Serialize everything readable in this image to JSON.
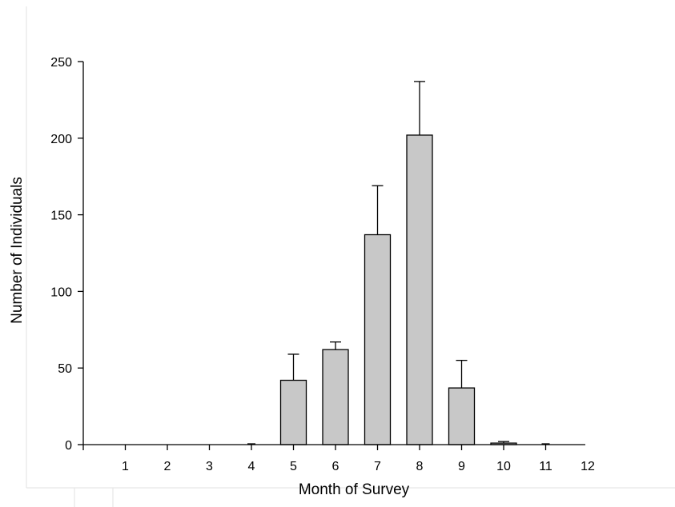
{
  "chart_data": {
    "type": "bar",
    "title": "",
    "xlabel": "Month of Survey",
    "ylabel": "Number of Individuals",
    "categories": [
      "1",
      "2",
      "3",
      "4",
      "5",
      "6",
      "7",
      "8",
      "9",
      "10",
      "11",
      "12"
    ],
    "values": [
      0,
      0,
      0,
      0,
      42,
      62,
      137,
      202,
      37,
      1,
      0,
      0
    ],
    "error_upper": [
      0,
      0,
      0,
      0,
      59,
      67,
      169,
      237,
      55,
      2,
      0,
      0
    ],
    "ylim": [
      0,
      250
    ],
    "yticks": [
      0,
      50,
      100,
      150,
      200,
      250
    ],
    "grid": false,
    "legend": "none",
    "bar_color": "#c8c8c8"
  }
}
